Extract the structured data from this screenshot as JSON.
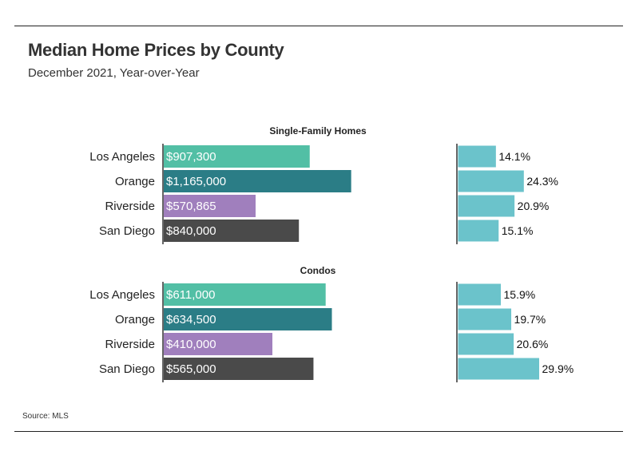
{
  "header": {
    "title": "Median Home Prices by County",
    "subtitle": "December 2021, Year-over-Year"
  },
  "footer": {
    "source": "Source: MLS"
  },
  "colors": {
    "Los Angeles": "#52bfa5",
    "Orange": "#2b7d86",
    "Riverside": "#a07fbd",
    "San Diego": "#4a4a4a",
    "change_bar": "#6bc3cb",
    "change_bar_stroke": "#ffffff",
    "axis": "#333333"
  },
  "chart_data": [
    {
      "type": "bar",
      "orientation": "horizontal",
      "title": "Single-Family Homes",
      "categories": [
        "Los Angeles",
        "Orange",
        "Riverside",
        "San Diego"
      ],
      "series": [
        {
          "values": [
            907300,
            1165000,
            570865,
            840000
          ],
          "labels": [
            "$907,300",
            "$1,165,000",
            "$570,865",
            "$840,000"
          ]
        },
        {
          "values": [
            14.1,
            24.3,
            20.9,
            15.1
          ],
          "labels": [
            "14.1%",
            "24.3%",
            "20.9%",
            "15.1%"
          ]
        }
      ],
      "xlim_price": [
        0,
        1400000
      ],
      "xlim_change": [
        0,
        35
      ]
    },
    {
      "type": "bar",
      "orientation": "horizontal",
      "title": "Condos",
      "categories": [
        "Los Angeles",
        "Orange",
        "Riverside",
        "San Diego"
      ],
      "series": [
        {
          "values": [
            611000,
            634500,
            410000,
            565000
          ],
          "labels": [
            "$611,000",
            "$634,500",
            "$410,000",
            "$565,000"
          ]
        },
        {
          "values": [
            15.9,
            19.7,
            20.6,
            29.9
          ],
          "labels": [
            "15.9%",
            "19.7%",
            "20.6%",
            "29.9%"
          ]
        }
      ],
      "xlim_price": [
        0,
        850000
      ],
      "xlim_change": [
        0,
        35
      ]
    }
  ]
}
